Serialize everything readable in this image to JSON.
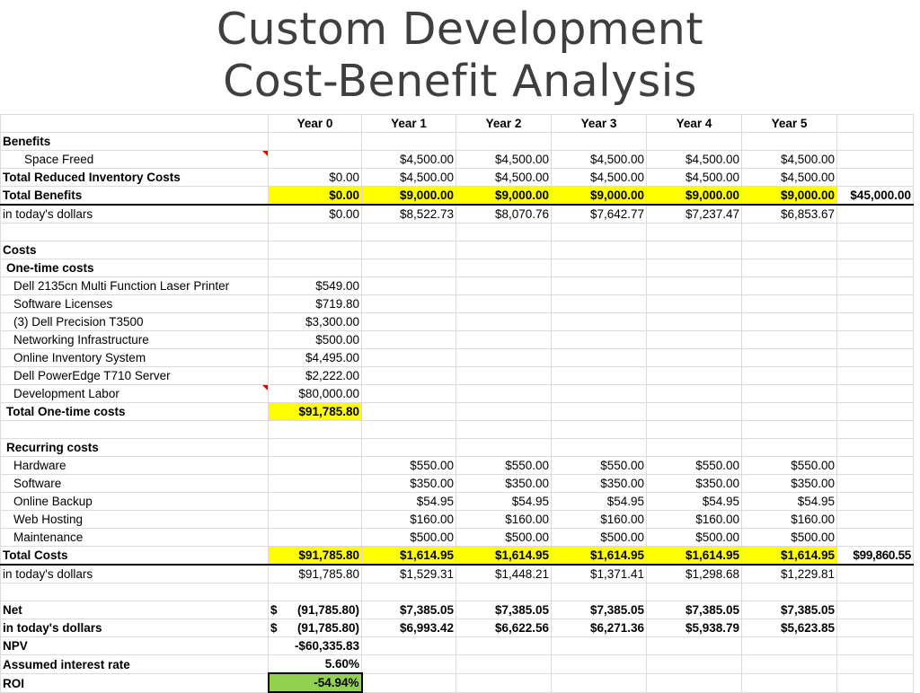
{
  "title": {
    "line1": "Custom Development",
    "line2": "Cost-Benefit Analysis"
  },
  "headers": [
    "",
    "Year 0",
    "Year 1",
    "Year 2",
    "Year 3",
    "Year 4",
    "Year 5",
    ""
  ],
  "benefits": {
    "section_label": "Benefits",
    "space_freed": {
      "label": "Space Freed",
      "values": [
        "",
        "$4,500.00",
        "$4,500.00",
        "$4,500.00",
        "$4,500.00",
        "$4,500.00"
      ]
    },
    "total_reduced_inventory": {
      "label": "Total Reduced Inventory Costs",
      "values": [
        "$0.00",
        "$4,500.00",
        "$4,500.00",
        "$4,500.00",
        "$4,500.00",
        "$4,500.00"
      ]
    },
    "total_benefits": {
      "label": "Total Benefits",
      "values": [
        "$0.00",
        "$9,000.00",
        "$9,000.00",
        "$9,000.00",
        "$9,000.00",
        "$9,000.00"
      ],
      "total": "$45,000.00"
    },
    "todays_dollars": {
      "label": "in today's dollars",
      "values": [
        "$0.00",
        "$8,522.73",
        "$8,070.76",
        "$7,642.77",
        "$7,237.47",
        "$6,853.67"
      ]
    }
  },
  "costs": {
    "section_label": "Costs",
    "one_time_label": "One-time costs",
    "one_time_items": [
      {
        "label": "Dell 2135cn Multi Function Laser Printer",
        "value": "$549.00"
      },
      {
        "label": "Software Licenses",
        "value": "$719.80"
      },
      {
        "label": "(3) Dell Precision T3500",
        "value": "$3,300.00"
      },
      {
        "label": "Networking Infrastructure",
        "value": "$500.00"
      },
      {
        "label": "Online Inventory System",
        "value": "$4,495.00"
      },
      {
        "label": "Dell PowerEdge T710 Server",
        "value": "$2,222.00"
      },
      {
        "label": "Development Labor",
        "value": "$80,000.00"
      }
    ],
    "total_one_time": {
      "label": "Total One-time costs",
      "value": "$91,785.80"
    },
    "recurring_label": "Recurring costs",
    "recurring_items": [
      {
        "label": "Hardware",
        "values": [
          "$550.00",
          "$550.00",
          "$550.00",
          "$550.00",
          "$550.00"
        ]
      },
      {
        "label": "Software",
        "values": [
          "$350.00",
          "$350.00",
          "$350.00",
          "$350.00",
          "$350.00"
        ]
      },
      {
        "label": "Online Backup",
        "values": [
          "$54.95",
          "$54.95",
          "$54.95",
          "$54.95",
          "$54.95"
        ]
      },
      {
        "label": "Web Hosting",
        "values": [
          "$160.00",
          "$160.00",
          "$160.00",
          "$160.00",
          "$160.00"
        ]
      },
      {
        "label": "Maintenance",
        "values": [
          "$500.00",
          "$500.00",
          "$500.00",
          "$500.00",
          "$500.00"
        ]
      }
    ],
    "total_costs": {
      "label": "Total Costs",
      "values": [
        "$91,785.80",
        "$1,614.95",
        "$1,614.95",
        "$1,614.95",
        "$1,614.95",
        "$1,614.95"
      ],
      "total": "$99,860.55"
    },
    "todays_dollars": {
      "label": "in today's dollars",
      "values": [
        "$91,785.80",
        "$1,529.31",
        "$1,448.21",
        "$1,371.41",
        "$1,298.68",
        "$1,229.81"
      ]
    }
  },
  "summary": {
    "net": {
      "label": "Net",
      "year0_sign": "$",
      "year0": "(91,785.80)",
      "values": [
        "$7,385.05",
        "$7,385.05",
        "$7,385.05",
        "$7,385.05",
        "$7,385.05"
      ]
    },
    "net_todays": {
      "label": "in today's dollars",
      "year0_sign": "$",
      "year0": "(91,785.80)",
      "values": [
        "$6,993.42",
        "$6,622.56",
        "$6,271.36",
        "$5,938.79",
        "$5,623.85"
      ]
    },
    "npv": {
      "label": "NPV",
      "value": "-$60,335.83"
    },
    "interest": {
      "label": "Assumed interest rate",
      "value": "5.60%"
    },
    "roi": {
      "label": "ROI",
      "value": "-54.94%"
    }
  }
}
